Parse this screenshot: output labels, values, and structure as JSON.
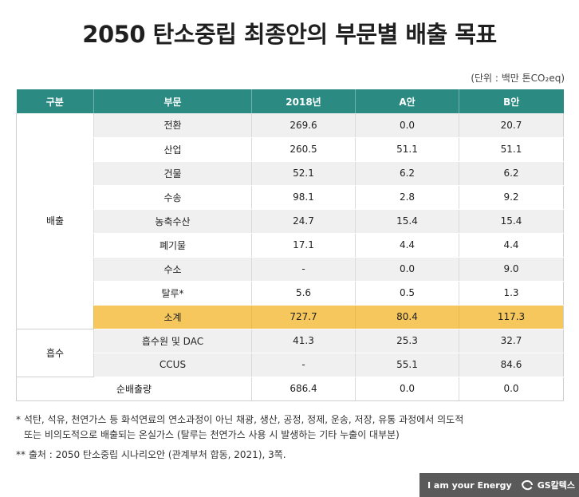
{
  "title": "2050 탄소중립 최종안의 부문별 배출 목표",
  "unit": "(단위 : 백만 톤CO₂eq)",
  "headers": [
    "구분",
    "부문",
    "2018년",
    "A안",
    "B안"
  ],
  "groups": {
    "emission": "배출",
    "absorption": "흡수"
  },
  "rows": [
    {
      "sector": "전환",
      "y2018": "269.6",
      "a": "0.0",
      "b": "20.7"
    },
    {
      "sector": "산업",
      "y2018": "260.5",
      "a": "51.1",
      "b": "51.1"
    },
    {
      "sector": "건물",
      "y2018": "52.1",
      "a": "6.2",
      "b": "6.2"
    },
    {
      "sector": "수송",
      "y2018": "98.1",
      "a": "2.8",
      "b": "9.2"
    },
    {
      "sector": "농축수산",
      "y2018": "24.7",
      "a": "15.4",
      "b": "15.4"
    },
    {
      "sector": "폐기물",
      "y2018": "17.1",
      "a": "4.4",
      "b": "4.4"
    },
    {
      "sector": "수소",
      "y2018": "-",
      "a": "0.0",
      "b": "9.0"
    },
    {
      "sector": "탈루*",
      "y2018": "5.6",
      "a": "0.5",
      "b": "1.3"
    }
  ],
  "subtotal": {
    "sector": "소계",
    "y2018": "727.7",
    "a": "80.4",
    "b": "117.3"
  },
  "absorption_rows": [
    {
      "sector": "흡수원 및 DAC",
      "y2018": "41.3",
      "a": "25.3",
      "b": "32.7"
    },
    {
      "sector": "CCUS",
      "y2018": "-",
      "a": "55.1",
      "b": "84.6"
    }
  ],
  "net": {
    "label": "순배출량",
    "y2018": "686.4",
    "a": "0.0",
    "b": "0.0"
  },
  "notes": {
    "note1_line1": "* 석탄, 석유, 천연가스 등 화석연료의 연소과정이 아닌 채광, 생산, 공정, 정제, 운송, 저장, 유통 과정에서 의도적",
    "note1_line2": "또는 비의도적으로 배출되는 온실가스 (탈루는 천연가스 사용 시 발생하는 기타 누출이 대부분)",
    "note2": "** 출처 : 2050 탄소중립 시나리오안 (관계부처 합동, 2021), 3쪽."
  },
  "brand": {
    "slogan": "I am your Energy",
    "logo_text": "GS칼텍스",
    "color": "#5a5a5a"
  },
  "colors": {
    "header": "#2b8b83",
    "subtotal": "#f5c75c",
    "stripe": "#f0f0f0"
  }
}
